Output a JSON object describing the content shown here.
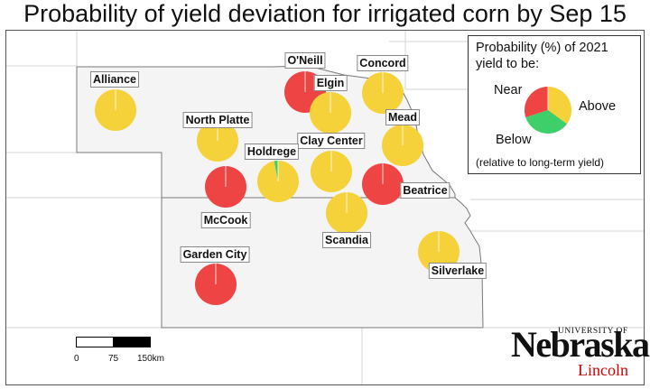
{
  "title": "Probability of yield deviation for irrigated corn by Sep 15",
  "legend": {
    "title_line1": "Probability (%) of 2021",
    "title_line2": "yield to be:",
    "near": "Near",
    "above": "Above",
    "below": "Below",
    "note": "(relative to long-term yield)",
    "example_probabilities": {
      "below": 30,
      "near": 35,
      "above": 35
    }
  },
  "colors": {
    "below": "#ee4444",
    "near": "#f5d13a",
    "above": "#3fcf6a",
    "state_fill": "#f4f4f4",
    "border": "#777777"
  },
  "stations": [
    {
      "name": "Alliance",
      "below": 0,
      "near": 100,
      "above": 0
    },
    {
      "name": "O'Neill",
      "below": 100,
      "near": 0,
      "above": 0
    },
    {
      "name": "Elgin",
      "below": 0,
      "near": 100,
      "above": 0
    },
    {
      "name": "Concord",
      "below": 0,
      "near": 100,
      "above": 0
    },
    {
      "name": "North Platte",
      "below": 0,
      "near": 100,
      "above": 0
    },
    {
      "name": "Mead",
      "below": 0,
      "near": 100,
      "above": 0
    },
    {
      "name": "Clay Center",
      "below": 0,
      "near": 100,
      "above": 0
    },
    {
      "name": "Holdrege",
      "below": 0,
      "near": 97,
      "above": 3
    },
    {
      "name": "McCook",
      "below": 100,
      "near": 0,
      "above": 0
    },
    {
      "name": "Beatrice",
      "below": 100,
      "near": 0,
      "above": 0
    },
    {
      "name": "Scandia",
      "below": 0,
      "near": 100,
      "above": 0
    },
    {
      "name": "Garden City",
      "below": 100,
      "near": 0,
      "above": 0
    },
    {
      "name": "Silverlake",
      "below": 0,
      "near": 100,
      "above": 0
    }
  ],
  "scale": {
    "labels": [
      "0",
      "75",
      "150km"
    ]
  },
  "logo": {
    "university": "UNIVERSITY OF",
    "name": "Nebraska",
    "campus": "Lincoln"
  }
}
